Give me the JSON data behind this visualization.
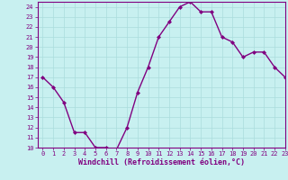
{
  "x": [
    0,
    1,
    2,
    3,
    4,
    5,
    6,
    7,
    8,
    9,
    10,
    11,
    12,
    13,
    14,
    15,
    16,
    17,
    18,
    19,
    20,
    21,
    22,
    23
  ],
  "y": [
    17,
    16,
    14.5,
    11.5,
    11.5,
    10,
    10,
    9.8,
    12,
    15.5,
    18,
    21,
    22.5,
    24,
    24.5,
    23.5,
    23.5,
    21,
    20.5,
    19,
    19.5,
    19.5,
    18,
    17
  ],
  "line_color": "#800080",
  "marker": "D",
  "marker_size": 2,
  "background_color": "#c8f0f0",
  "grid_color": "#aadddd",
  "xlabel": "Windchill (Refroidissement éolien,°C)",
  "ylim": [
    10,
    24.5
  ],
  "xlim": [
    -0.5,
    23
  ],
  "yticks": [
    10,
    11,
    12,
    13,
    14,
    15,
    16,
    17,
    18,
    19,
    20,
    21,
    22,
    23,
    24
  ],
  "xticks": [
    0,
    1,
    2,
    3,
    4,
    5,
    6,
    7,
    8,
    9,
    10,
    11,
    12,
    13,
    14,
    15,
    16,
    17,
    18,
    19,
    20,
    21,
    22,
    23
  ],
  "tick_fontsize": 5,
  "xlabel_fontsize": 6,
  "line_width": 1.0,
  "spine_color": "#800080"
}
